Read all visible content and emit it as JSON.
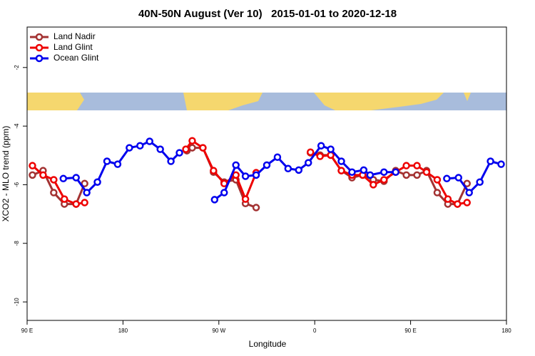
{
  "chart_data": {
    "type": "line",
    "title": "40N-50N August (Ver 10)   2015-01-01 to 2020-12-18",
    "x_label": "Longitude",
    "y_label": "XCO2 - MLO trend (ppm)",
    "xlim": [
      90,
      540
    ],
    "xticks": [
      {
        "value": 90,
        "label": "90 E"
      },
      180,
      {
        "value": 270,
        "label": "90 W"
      },
      {
        "value": 360,
        "label": "0"
      },
      {
        "value": 450,
        "label": "90 E"
      },
      {
        "value": 540,
        "label": "180"
      }
    ],
    "ylim": [
      -10.63,
      -0.62
    ],
    "yticks": [
      -2,
      -4,
      -6,
      -8,
      -10
    ],
    "legend": "top-left",
    "series": [
      {
        "name": "Land Nadir",
        "color": "#a33232",
        "x": [
          95,
          105,
          115,
          125,
          136,
          144,
          null,
          240,
          245,
          255,
          265,
          275,
          286,
          295,
          305,
          null,
          356,
          365,
          375,
          385,
          395,
          405,
          415,
          425,
          436,
          446,
          456,
          465,
          475,
          485,
          494,
          503
        ],
        "values": [
          -5.67,
          -5.52,
          -6.27,
          -6.66,
          -6.66,
          -5.96,
          null,
          -4.84,
          -4.74,
          -4.74,
          -5.57,
          -5.91,
          -5.83,
          -6.64,
          -6.78,
          null,
          -4.91,
          -4.99,
          -4.99,
          -5.52,
          -5.76,
          -5.67,
          -5.83,
          -5.88,
          -5.52,
          -5.67,
          -5.67,
          -5.52,
          -6.27,
          -6.66,
          -6.66,
          -5.96
        ]
      },
      {
        "name": "Land Glint",
        "color": "#ee0000",
        "x": [
          95,
          105,
          115,
          125,
          136,
          144,
          null,
          239,
          245,
          255,
          265,
          275,
          286,
          295,
          305,
          null,
          356,
          365,
          375,
          385,
          395,
          405,
          415,
          425,
          436,
          446,
          456,
          465,
          475,
          485,
          494,
          503
        ],
        "values": [
          -5.35,
          -5.67,
          -5.83,
          -6.49,
          -6.66,
          -6.61,
          null,
          -4.79,
          -4.5,
          -4.74,
          -5.52,
          -5.96,
          -5.67,
          -6.49,
          -5.59,
          null,
          -4.89,
          -5.03,
          -4.99,
          -5.52,
          -5.67,
          -5.67,
          -6.0,
          -5.83,
          -5.57,
          -5.35,
          -5.35,
          -5.57,
          -5.83,
          -6.49,
          -6.66,
          -6.61
        ]
      },
      {
        "name": "Ocean Glint",
        "color": "#0000ee",
        "x": [
          124,
          136,
          146,
          156,
          165,
          175,
          186,
          196,
          205,
          215,
          225,
          233,
          null,
          266,
          275,
          286,
          295,
          305,
          315,
          325,
          335,
          345,
          354,
          366,
          375,
          385,
          395,
          406,
          412,
          425,
          436,
          null,
          484,
          495,
          505,
          515,
          525,
          535
        ],
        "values": [
          -5.79,
          -5.76,
          -6.27,
          -5.91,
          -5.2,
          -5.3,
          -4.74,
          -4.67,
          -4.52,
          -4.79,
          -5.2,
          -4.91,
          null,
          -6.51,
          -6.27,
          -5.33,
          -5.71,
          -5.67,
          -5.33,
          -5.06,
          -5.45,
          -5.5,
          -5.25,
          -4.67,
          -4.79,
          -5.2,
          -5.57,
          -5.5,
          -5.67,
          -5.57,
          -5.57,
          null,
          -5.79,
          -5.76,
          -6.27,
          -5.91,
          -5.2,
          -5.3
        ]
      }
    ]
  }
}
